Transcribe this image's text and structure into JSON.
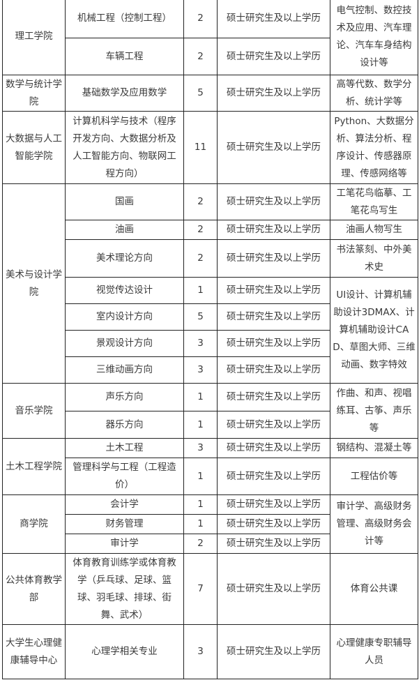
{
  "table": {
    "rows": [
      {
        "college": {
          "text": "理工学院",
          "span": 2
        },
        "major": "机械工程（控制工程）",
        "count": "2",
        "degree": "硕士研究生及以上学历",
        "research": {
          "text": "电气控制、数控技术及应用、汽车理论、汽车车身结构设计等",
          "span": 2
        }
      },
      {
        "major": "车辆工程",
        "count": "2",
        "degree": "硕士研究生及以上学历"
      },
      {
        "college": {
          "text": "数学与统计学院",
          "span": 1
        },
        "major": "基础数学及应用数学",
        "count": "5",
        "degree": "硕士研究生及以上学历",
        "research": {
          "text": "高等代数、数学分析、统计学等",
          "span": 1
        }
      },
      {
        "college": {
          "text": "大数据与人工智能学院",
          "span": 1
        },
        "major": "计算机科学与技术（程序开发方向、大数据分析及人工智能方向、物联网工程方向）",
        "count": "11",
        "degree": "硕士研究生及以上学历",
        "research": {
          "text": "Python、大数据分析、算法分析、程序设计、传感器原理、传感网络等",
          "span": 1
        }
      },
      {
        "college": {
          "text": "美术与设计学院",
          "span": 7
        },
        "major": "国画",
        "count": "2",
        "degree": "硕士研究生及以上学历",
        "research": {
          "text": "工笔花鸟临摹、工笔花鸟写生",
          "span": 1
        }
      },
      {
        "major": "油画",
        "count": "2",
        "degree": "硕士研究生及以上学历",
        "research": {
          "text": "油画人物写生",
          "span": 1
        }
      },
      {
        "major": "美术理论方向",
        "count": "2",
        "degree": "硕士研究生及以上学历",
        "research": {
          "text": "书法篆刻、中外美术史",
          "span": 1
        }
      },
      {
        "major": "视觉传达设计",
        "count": "1",
        "degree": "硕士研究生及以上学历",
        "research": {
          "text": "UI设计、计算机辅助设计3DMAX、计算机辅助设计CAD、草图大师、三维动画、数字特效",
          "span": 4
        }
      },
      {
        "major": "室内设计方向",
        "count": "5",
        "degree": "硕士研究生及以上学历"
      },
      {
        "major": "景观设计方向",
        "count": "3",
        "degree": "硕士研究生及以上学历"
      },
      {
        "major": "三维动画方向",
        "count": "3",
        "degree": "硕士研究生及以上学历"
      },
      {
        "college": {
          "text": "音乐学院",
          "span": 2
        },
        "major": "声乐方向",
        "count": "1",
        "degree": "硕士研究生及以上学历",
        "research": {
          "text": "作曲、和声、视唱练耳、古筝、声乐等",
          "span": 2
        }
      },
      {
        "major": "器乐方向",
        "count": "1",
        "degree": "硕士研究生及以上学历"
      },
      {
        "college": {
          "text": "土木工程学院",
          "span": 2
        },
        "major": "土木工程",
        "count": "3",
        "degree": "硕士研究生及以上学历",
        "research": {
          "text": "钢结构、混凝土等",
          "span": 1
        }
      },
      {
        "major": "管理科学与工程（工程造价）",
        "count": "1",
        "degree": "硕士研究生及以上学历",
        "research": {
          "text": "工程估价等",
          "span": 1
        }
      },
      {
        "college": {
          "text": "商学院",
          "span": 3
        },
        "major": "会计学",
        "count": "1",
        "degree": "硕士研究生及以上学历",
        "research": {
          "text": "审计学、高级财务管理、高级财务会计等",
          "span": 3
        }
      },
      {
        "major": "财务管理",
        "count": "1",
        "degree": "硕士研究生及以上学历"
      },
      {
        "major": "审计学",
        "count": "2",
        "degree": "硕士研究生及以上学历"
      },
      {
        "college": {
          "text": "公共体育教学部",
          "span": 1
        },
        "major": "体育教育训练学或体育教学（乒乓球、足球、篮球、羽毛球、排球、街舞、武术）",
        "count": "7",
        "degree": "硕士研究生及以上学历",
        "research": {
          "text": "体育公共课",
          "span": 1
        }
      },
      {
        "college": {
          "text": "大学生心理健康辅导中心",
          "span": 1
        },
        "major": "心理学相关专业",
        "count": "3",
        "degree": "硕士研究生及以上学历",
        "research": {
          "text": "心理健康专职辅导人员",
          "span": 1
        }
      }
    ]
  }
}
